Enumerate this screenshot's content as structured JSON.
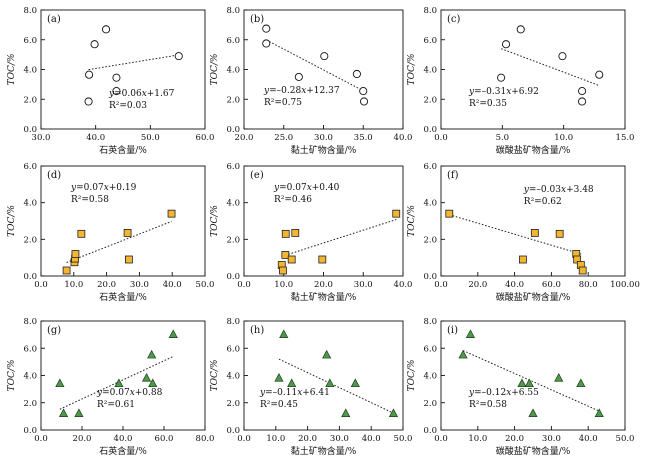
{
  "chart_data": [
    {
      "id": "a",
      "type": "scatter",
      "panel_label": "(a)",
      "marker": "circle",
      "marker_color": "#ffffff",
      "xlabel": "石英含量/%",
      "ylabel": "TOC/%",
      "xlim": [
        30,
        60
      ],
      "ylim": [
        0,
        8
      ],
      "xticks": [
        "30.0",
        "40.0",
        "50.0",
        "60.0"
      ],
      "yticks": [
        "0.0",
        "2.0",
        "4.0",
        "6.0",
        "8.0"
      ],
      "x": [
        38.8,
        39.8,
        41.9,
        43.8,
        43.8,
        38.7,
        55.2
      ],
      "y": [
        3.65,
        5.7,
        6.7,
        3.45,
        2.55,
        1.85,
        4.9
      ],
      "trendline": {
        "slope": 0.06,
        "intercept": 1.67
      },
      "eq_prefix": "y",
      "eq_rest": "=0.06",
      "eq_var": "x",
      "eq_tail": "+1.67",
      "r2_label": "R²=0.03",
      "eq_pos": "bottom-right"
    },
    {
      "id": "b",
      "type": "scatter",
      "panel_label": "(b)",
      "marker": "circle",
      "marker_color": "#ffffff",
      "xlabel": "黏土矿物含量/%",
      "ylabel": "TOC/%",
      "xlim": [
        20,
        40
      ],
      "ylim": [
        0,
        8
      ],
      "xticks": [
        "20.0",
        "25.0",
        "30.0",
        "35.0",
        "40.0"
      ],
      "yticks": [
        "0.0",
        "2.0",
        "4.0",
        "6.0",
        "8.0"
      ],
      "x": [
        22.8,
        22.8,
        26.9,
        30.1,
        34.2,
        35.0,
        35.1
      ],
      "y": [
        6.75,
        5.75,
        3.5,
        4.9,
        3.7,
        2.55,
        1.85
      ],
      "trendline": {
        "slope": -0.28,
        "intercept": 12.37
      },
      "eq_prefix": "y",
      "eq_rest": "=–0.28",
      "eq_var": "x",
      "eq_tail": "+12.37",
      "r2_label": "R²=0.75",
      "eq_pos": "bottom-left"
    },
    {
      "id": "c",
      "type": "scatter",
      "panel_label": "(c)",
      "marker": "circle",
      "marker_color": "#ffffff",
      "xlabel": "碳酸盐矿物含量/%",
      "ylabel": "TOC/%",
      "xlim": [
        0,
        15
      ],
      "ylim": [
        0,
        8
      ],
      "xticks": [
        "0.0",
        "5.0",
        "10.0",
        "15.0"
      ],
      "yticks": [
        "0.0",
        "2.0",
        "4.0",
        "6.0",
        "8.0"
      ],
      "x": [
        4.9,
        5.3,
        6.5,
        9.9,
        11.5,
        11.5,
        12.9
      ],
      "y": [
        3.45,
        5.7,
        6.7,
        4.9,
        2.55,
        1.85,
        3.65
      ],
      "trendline": {
        "slope": -0.31,
        "intercept": 6.92
      },
      "eq_prefix": "y",
      "eq_rest": "=–0.31",
      "eq_var": "x",
      "eq_tail": "+6.92",
      "r2_label": "R²=0.35",
      "eq_pos": "bottom-left"
    },
    {
      "id": "d",
      "type": "scatter",
      "panel_label": "(d)",
      "marker": "square",
      "marker_color": "#f2b632",
      "xlabel": "石英含量/%",
      "ylabel": "TOC/%",
      "xlim": [
        0,
        50
      ],
      "ylim": [
        0,
        6
      ],
      "xticks": [
        "0.0",
        "10.0",
        "20.0",
        "30.0",
        "40.0",
        "50.0"
      ],
      "yticks": [
        "0.0",
        "2.0",
        "4.0",
        "6.0"
      ],
      "x": [
        7.8,
        10.2,
        10.4,
        10.5,
        12.3,
        26.4,
        26.8,
        39.8
      ],
      "y": [
        0.3,
        0.75,
        0.95,
        1.2,
        2.3,
        2.35,
        0.9,
        3.4
      ],
      "trendline": {
        "slope": 0.07,
        "intercept": 0.19
      },
      "eq_prefix": "y",
      "eq_rest": "=0.07",
      "eq_var": "x",
      "eq_tail": "+0.19",
      "r2_label": "R²=0.58",
      "eq_pos": "top-left"
    },
    {
      "id": "e",
      "type": "scatter",
      "panel_label": "(e)",
      "marker": "square",
      "marker_color": "#f2b632",
      "xlabel": "黏土矿物含量/%",
      "ylabel": "TOC/%",
      "xlim": [
        0,
        40
      ],
      "ylim": [
        0,
        6
      ],
      "xticks": [
        "0.0",
        "10.0",
        "20.0",
        "30.0",
        "40.0"
      ],
      "yticks": [
        "0.0",
        "2.0",
        "4.0",
        "6.0"
      ],
      "x": [
        9.5,
        9.8,
        10.4,
        10.5,
        12.0,
        12.9,
        19.7,
        38.3
      ],
      "y": [
        0.6,
        0.3,
        1.15,
        2.3,
        0.9,
        2.35,
        0.9,
        3.4
      ],
      "trendline": {
        "slope": 0.07,
        "intercept": 0.4
      },
      "eq_prefix": "y",
      "eq_rest": "=0.07",
      "eq_var": "x",
      "eq_tail": "+0.40",
      "r2_label": "R²=0.46",
      "eq_pos": "top-left"
    },
    {
      "id": "f",
      "type": "scatter",
      "panel_label": "(f)",
      "marker": "square",
      "marker_color": "#f2b632",
      "xlabel": "碳酸盐矿物含量/%",
      "ylabel": "TOC/%",
      "xlim": [
        0,
        100
      ],
      "ylim": [
        0,
        6
      ],
      "xticks": [
        "0.0",
        "20.0",
        "40.0",
        "60.0",
        "80.0",
        "100.00"
      ],
      "yticks": [
        "0.0",
        "2.0",
        "4.0",
        "6.0"
      ],
      "x": [
        4.5,
        44.5,
        51.0,
        64.5,
        73.5,
        74.0,
        76.0,
        77.0
      ],
      "y": [
        3.4,
        0.9,
        2.35,
        2.3,
        1.2,
        0.9,
        0.6,
        0.3
      ],
      "trendline": {
        "slope": -0.03,
        "intercept": 3.48
      },
      "eq_prefix": "y",
      "eq_rest": "=–0.03",
      "eq_var": "x",
      "eq_tail": "+3.48",
      "r2_label": "R²=0.62",
      "eq_pos": "top-right"
    },
    {
      "id": "g",
      "type": "scatter",
      "panel_label": "(g)",
      "marker": "triangle",
      "marker_color": "#4e9a4a",
      "xlabel": "石英含量/%",
      "ylabel": "TOC/%",
      "xlim": [
        0,
        80
      ],
      "ylim": [
        0,
        8
      ],
      "xticks": [
        "0.0",
        "20.0",
        "40.0",
        "60.0",
        "80.0"
      ],
      "yticks": [
        "0.0",
        "2.0",
        "4.0",
        "6.0",
        "8.0"
      ],
      "x": [
        9.2,
        11.0,
        18.5,
        38.0,
        51.5,
        54.0,
        54.5,
        64.5
      ],
      "y": [
        3.4,
        1.2,
        1.2,
        3.4,
        3.8,
        5.5,
        3.4,
        7.0
      ],
      "trendline": {
        "slope": 0.07,
        "intercept": 0.88
      },
      "eq_prefix": "y",
      "eq_rest": "=0.07",
      "eq_var": "x",
      "eq_tail": "+0.88",
      "r2_label": "R²=0.61",
      "eq_pos": "bottom-right"
    },
    {
      "id": "h",
      "type": "scatter",
      "panel_label": "(h)",
      "marker": "triangle",
      "marker_color": "#4e9a4a",
      "xlabel": "黏土矿物含量/%",
      "ylabel": "TOC/%",
      "xlim": [
        0,
        50
      ],
      "ylim": [
        0,
        8
      ],
      "xticks": [
        "0.0",
        "10.0",
        "20.0",
        "30.0",
        "40.0",
        "50.0"
      ],
      "yticks": [
        "0.0",
        "2.0",
        "4.0",
        "6.0",
        "8.0"
      ],
      "x": [
        11.0,
        12.5,
        15.0,
        26.0,
        27.0,
        32.0,
        35.0,
        47.0
      ],
      "y": [
        3.8,
        7.0,
        3.4,
        5.5,
        3.4,
        1.2,
        3.4,
        1.2
      ],
      "trendline": {
        "slope": -0.11,
        "intercept": 6.41
      },
      "eq_prefix": "y",
      "eq_rest": "=–0.11",
      "eq_var": "x",
      "eq_tail": "+6.41",
      "r2_label": "R²=0.45",
      "eq_pos": "bottom-left"
    },
    {
      "id": "i",
      "type": "scatter",
      "panel_label": "(i)",
      "marker": "triangle",
      "marker_color": "#4e9a4a",
      "xlabel": "碳酸盐矿物含量/%",
      "ylabel": "TOC/%",
      "xlim": [
        0,
        50
      ],
      "ylim": [
        0,
        8
      ],
      "xticks": [
        "0.0",
        "10.0",
        "20.0",
        "30.0",
        "40.0",
        "50.0"
      ],
      "yticks": [
        "0.0",
        "2.0",
        "4.0",
        "6.0",
        "8.0"
      ],
      "x": [
        6.0,
        8.0,
        22.0,
        24.0,
        25.0,
        32.0,
        38.0,
        43.0
      ],
      "y": [
        5.5,
        7.0,
        3.4,
        3.4,
        1.2,
        3.8,
        3.4,
        1.2
      ],
      "trendline": {
        "slope": -0.12,
        "intercept": 6.55
      },
      "eq_prefix": "y",
      "eq_rest": "=–0.12",
      "eq_var": "x",
      "eq_tail": "+6.55",
      "r2_label": "R²=0.58",
      "eq_pos": "bottom-left"
    }
  ]
}
